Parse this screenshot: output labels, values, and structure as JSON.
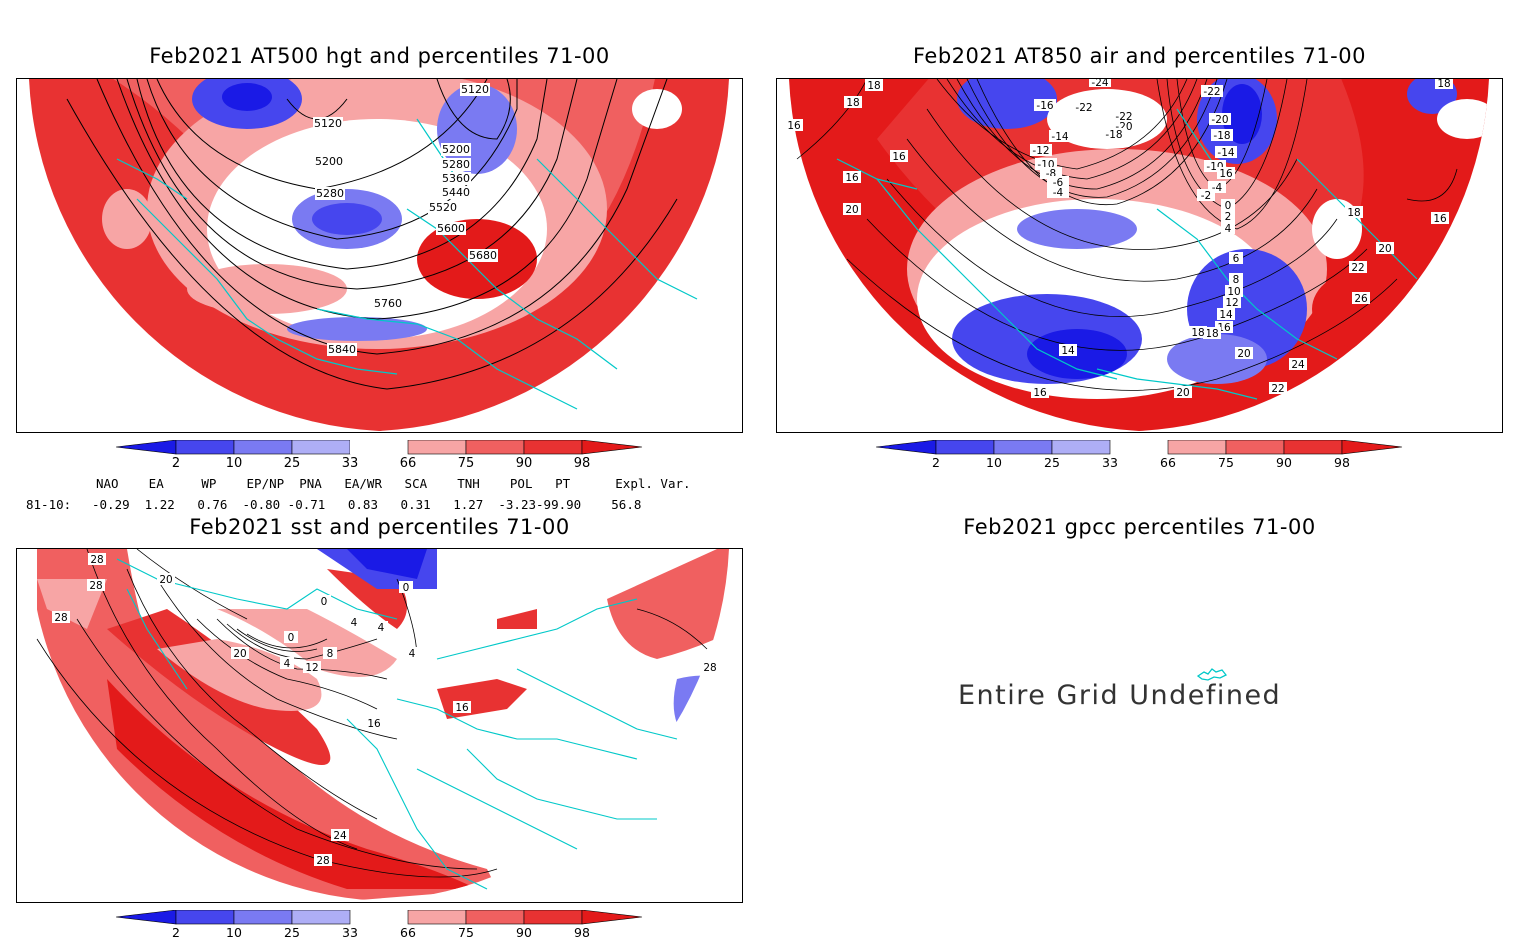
{
  "panels": {
    "p1": {
      "title": "Feb2021 AT500 hgt and percentiles 71-00",
      "contour_labels": [
        "5120",
        "5120",
        "5200",
        "5280",
        "5360",
        "5440",
        "5520",
        "5600",
        "5680",
        "5200",
        "5280",
        "5760",
        "5840"
      ]
    },
    "p2": {
      "title": "Feb2021 AT850 air and percentiles 71-00",
      "contour_labels": [
        "18",
        "18",
        "16",
        "16",
        "16",
        "20",
        "-24",
        "-16",
        "-22",
        "-22",
        "-20",
        "-18",
        "-14",
        "-12",
        "-10",
        "-8",
        "-6",
        "-4",
        "-22",
        "-20",
        "-18",
        "-16",
        "-14",
        "-12",
        "-10",
        "-8",
        "-4",
        "-2",
        "0",
        "2",
        "4",
        "6",
        "8",
        "10",
        "12",
        "14",
        "16",
        "18",
        "20",
        "22",
        "26",
        "24",
        "22",
        "20",
        "18",
        "16",
        "14",
        "16",
        "18",
        "20",
        "16",
        "20"
      ]
    },
    "p3": {
      "title": "Feb2021 sst and percentiles 71-00",
      "contour_labels": [
        "28",
        "28",
        "28",
        "20",
        "0",
        "20",
        "0",
        "4",
        "8",
        "12",
        "16",
        "4",
        "4",
        "0",
        "4",
        "16",
        "24",
        "28",
        "28"
      ]
    },
    "p4": {
      "title": "Feb2021 gpcc percentiles 71-00",
      "message": "Entire Grid Undefined"
    }
  },
  "colorbar": {
    "labels": [
      "2",
      "10",
      "25",
      "33",
      "66",
      "75",
      "90",
      "98"
    ],
    "colors": {
      "c1": "#1a1ae6",
      "c2": "#4646ee",
      "c3": "#7a7af2",
      "c4": "#aeaef6",
      "white": "#ffffff",
      "w1": "#f7a5a5",
      "w2": "#f06060",
      "w3": "#e83232",
      "w4": "#e31a1a"
    }
  },
  "indices": {
    "header": "NAO    EA     WP    EP/NP  PNA   EA/WR   SCA    TNH    POL   PT      Expl. Var.",
    "row_label": "81-10:",
    "values": "-0.29  1.22   0.76  -0.80 -0.71   0.83   0.31   1.27  -3.23-99.90    56.8"
  }
}
